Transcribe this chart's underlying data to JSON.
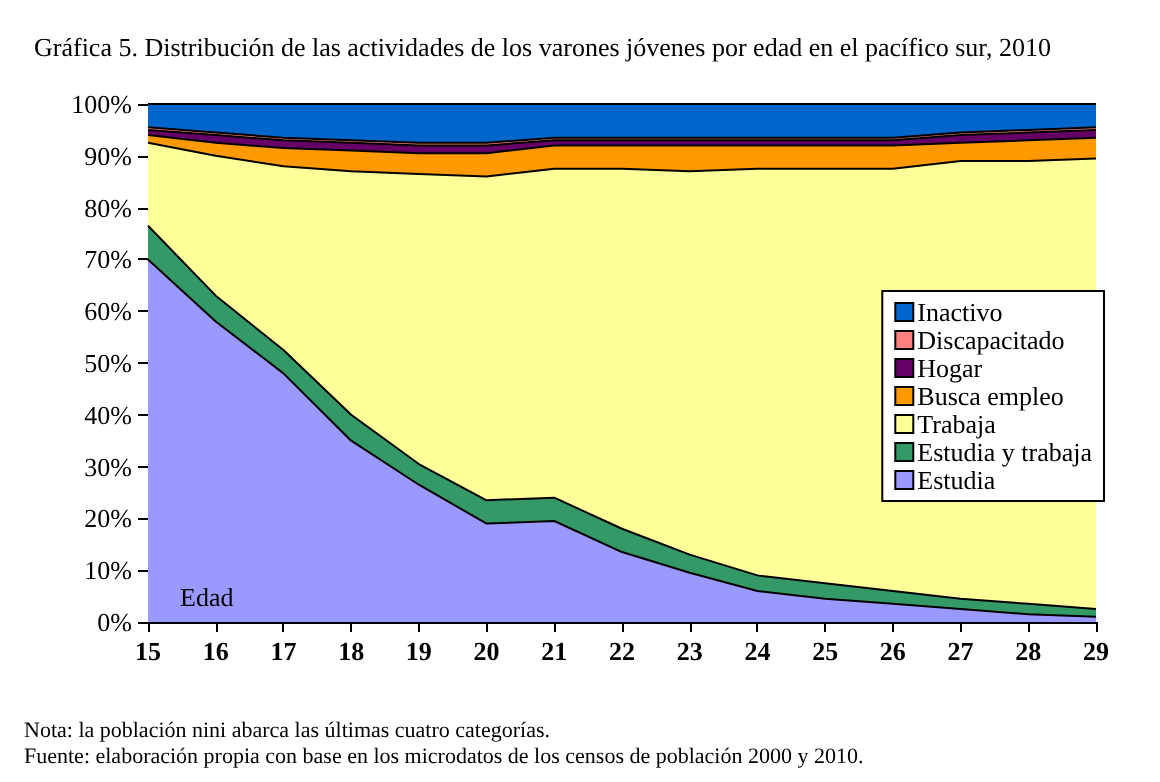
{
  "chart_data": {
    "type": "area",
    "stacked": true,
    "title": "Gráfica 5. Distribución de las actividades de los varones jóvenes por edad en el pacífico sur, 2010",
    "xlabel": "Edad",
    "categories": [
      "15",
      "16",
      "17",
      "18",
      "19",
      "20",
      "21",
      "22",
      "23",
      "24",
      "25",
      "26",
      "27",
      "28",
      "29"
    ],
    "series": [
      {
        "name": "Estudia",
        "color": "#9999ff",
        "values": [
          70,
          58,
          48,
          35,
          26.5,
          19,
          19.5,
          13.5,
          9.5,
          6,
          4.5,
          3.5,
          2.5,
          1.5,
          1
        ]
      },
      {
        "name": "Estudia y trabaja",
        "color": "#339966",
        "values": [
          6.5,
          5,
          4.5,
          5,
          4,
          4.5,
          4.5,
          4.5,
          3.5,
          3,
          3,
          2.5,
          2,
          2,
          1.5
        ]
      },
      {
        "name": "Trabaja",
        "color": "#ffff99",
        "values": [
          16,
          27,
          35.5,
          47,
          56,
          62.5,
          63.5,
          69.5,
          74,
          78.5,
          80,
          81.5,
          84.5,
          85.5,
          87
        ]
      },
      {
        "name": "Busca empleo",
        "color": "#ff9900",
        "values": [
          1.5,
          2.5,
          3.5,
          4,
          4,
          4.5,
          4.5,
          4.5,
          5,
          4.5,
          4.5,
          4.5,
          3.5,
          4,
          4
        ]
      },
      {
        "name": "Hogar",
        "color": "#660066",
        "values": [
          1,
          1.5,
          1.5,
          1.5,
          1.5,
          1.5,
          1,
          1,
          1,
          1,
          1,
          1,
          1.5,
          1.5,
          1.5
        ]
      },
      {
        "name": "Discapacitado",
        "color": "#ff8080",
        "values": [
          0.5,
          0.5,
          0.5,
          0.5,
          0.5,
          0.5,
          0.5,
          0.5,
          0.5,
          0.5,
          0.5,
          0.5,
          0.5,
          0.5,
          0.5
        ]
      },
      {
        "name": "Inactivo",
        "color": "#0066cc",
        "values": [
          4.5,
          5.5,
          6.5,
          7,
          7.5,
          7.5,
          6.5,
          6.5,
          6.5,
          6.5,
          6.5,
          6.5,
          5.5,
          5,
          4.5
        ]
      }
    ],
    "ylim": [
      0,
      100
    ],
    "yticks": [
      {
        "value": 0,
        "label": "0%"
      },
      {
        "value": 10,
        "label": "10%"
      },
      {
        "value": 20,
        "label": "20%"
      },
      {
        "value": 30,
        "label": "30%"
      },
      {
        "value": 40,
        "label": "40%"
      },
      {
        "value": 50,
        "label": "50%"
      },
      {
        "value": 60,
        "label": "60%"
      },
      {
        "value": 70,
        "label": "70%"
      },
      {
        "value": 80,
        "label": "80%"
      },
      {
        "value": 90,
        "label": "90%"
      },
      {
        "value": 100,
        "label": "100%"
      }
    ],
    "legend": "right",
    "annotations": [
      "Nota: la población nini abarca las últimas cuatro categorías.",
      "Fuente: elaboración propia con base en los microdatos de los censos de población 2000 y 2010."
    ]
  }
}
